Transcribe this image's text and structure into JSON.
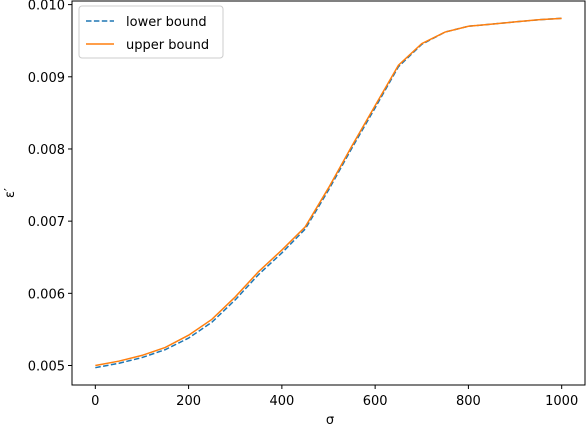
{
  "chart_data": {
    "type": "line",
    "x_label": "σ",
    "y_label": "ε′",
    "x": [
      0,
      50,
      100,
      150,
      200,
      250,
      300,
      350,
      400,
      450,
      500,
      550,
      600,
      650,
      700,
      750,
      800,
      850,
      900,
      950,
      1000
    ],
    "series": [
      {
        "name": "lower bound",
        "color": "#1f77b4",
        "dash": true,
        "values": [
          0.00497,
          0.00503,
          0.00511,
          0.00522,
          0.00538,
          0.0056,
          0.00591,
          0.00626,
          0.00656,
          0.00689,
          0.00743,
          0.00801,
          0.00857,
          0.00914,
          0.00945,
          0.00962,
          0.0097,
          0.00973,
          0.00976,
          0.00979,
          0.00981
        ]
      },
      {
        "name": "upper bound",
        "color": "#ff7f0e",
        "dash": false,
        "values": [
          0.005,
          0.00506,
          0.00514,
          0.00525,
          0.00542,
          0.00564,
          0.00595,
          0.0063,
          0.0066,
          0.00692,
          0.00746,
          0.00804,
          0.0086,
          0.00916,
          0.00946,
          0.00962,
          0.0097,
          0.00973,
          0.00976,
          0.00979,
          0.00981
        ]
      }
    ],
    "xlim": [
      -50,
      1050
    ],
    "ylim": [
      0.00473,
      0.01005
    ],
    "xticks": [
      0,
      200,
      400,
      600,
      800,
      1000
    ],
    "yticks": [
      0.005,
      0.006,
      0.007,
      0.008,
      0.009,
      {
        "value": 0.01,
        "label": "0.010"
      }
    ],
    "legend": "upper left"
  }
}
